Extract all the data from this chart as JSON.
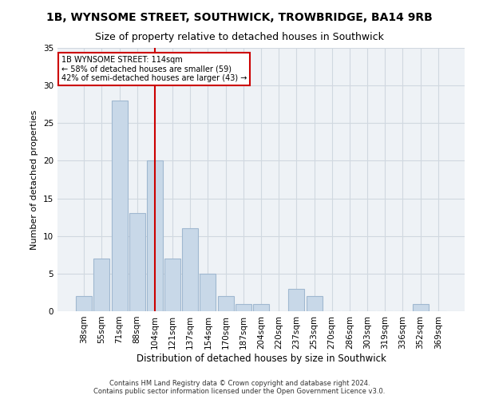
{
  "title": "1B, WYNSOME STREET, SOUTHWICK, TROWBRIDGE, BA14 9RB",
  "subtitle": "Size of property relative to detached houses in Southwick",
  "xlabel": "Distribution of detached houses by size in Southwick",
  "ylabel": "Number of detached properties",
  "categories": [
    "38sqm",
    "55sqm",
    "71sqm",
    "88sqm",
    "104sqm",
    "121sqm",
    "137sqm",
    "154sqm",
    "170sqm",
    "187sqm",
    "204sqm",
    "220sqm",
    "237sqm",
    "253sqm",
    "270sqm",
    "286sqm",
    "303sqm",
    "319sqm",
    "336sqm",
    "352sqm",
    "369sqm"
  ],
  "values": [
    2,
    7,
    28,
    13,
    20,
    7,
    11,
    5,
    2,
    1,
    1,
    0,
    3,
    2,
    0,
    0,
    0,
    0,
    0,
    1,
    0
  ],
  "bar_color": "#c8d8e8",
  "bar_edge_color": "#a0b8d0",
  "property_label": "1B WYNSOME STREET: 114sqm",
  "pct_smaller": 58,
  "n_smaller": 59,
  "pct_larger_semi": 42,
  "n_larger_semi": 43,
  "vline_position": 4.0,
  "annotation_box_color": "#ffffff",
  "annotation_box_edge": "#cc0000",
  "vline_color": "#cc0000",
  "grid_color": "#d0d8e0",
  "background_color": "#eef2f6",
  "fig_background_color": "#ffffff",
  "ylim": [
    0,
    35
  ],
  "yticks": [
    0,
    5,
    10,
    15,
    20,
    25,
    30,
    35
  ],
  "title_fontsize": 10,
  "subtitle_fontsize": 9,
  "xlabel_fontsize": 8.5,
  "ylabel_fontsize": 8,
  "tick_fontsize": 7.5,
  "footnote_fontsize": 6,
  "footnote1": "Contains HM Land Registry data © Crown copyright and database right 2024.",
  "footnote2": "Contains public sector information licensed under the Open Government Licence v3.0."
}
